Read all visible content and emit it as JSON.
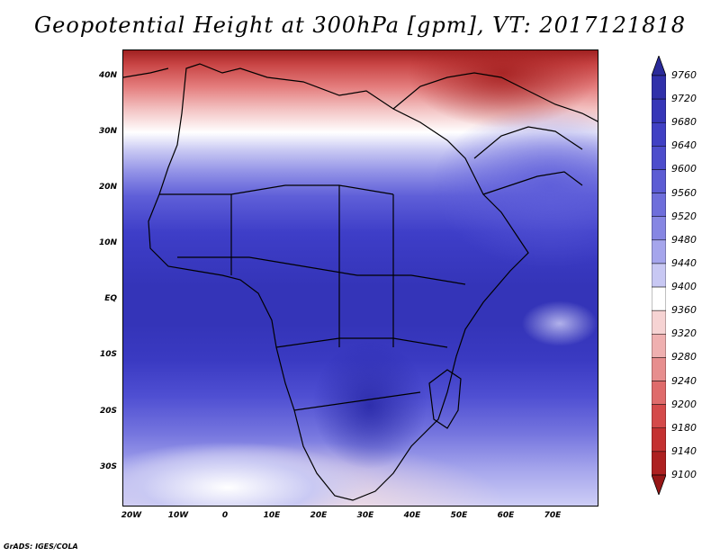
{
  "title": "Geopotential Height at 300hPa [gpm], VT: 2017121818",
  "credit": "GrADS: IGES/COLA",
  "lat_ticks": [
    "40N",
    "30N",
    "20N",
    "10N",
    "EQ",
    "10S",
    "20S",
    "30S"
  ],
  "lon_ticks": [
    "20W",
    "10W",
    "0",
    "10E",
    "20E",
    "30E",
    "40E",
    "50E",
    "60E",
    "70E"
  ],
  "colorbar": {
    "levels": [
      "9760",
      "9720",
      "9680",
      "9640",
      "9600",
      "9560",
      "9520",
      "9480",
      "9440",
      "9400",
      "9360",
      "9320",
      "9280",
      "9240",
      "9200",
      "9180",
      "9140",
      "9100"
    ],
    "colors": [
      "#2a2a9a",
      "#3030aa",
      "#3636b8",
      "#4040c4",
      "#4d4dcc",
      "#5c5cd4",
      "#6e6edb",
      "#8686e3",
      "#a5a5ec",
      "#c8c8f3",
      "#ffffff",
      "#f6d3d3",
      "#efb0b0",
      "#e78e8e",
      "#df6b6b",
      "#d44a4a",
      "#c43131",
      "#ad2020",
      "#961616"
    ],
    "top_color": "#2a2a9a",
    "bottom_color": "#961616"
  }
}
